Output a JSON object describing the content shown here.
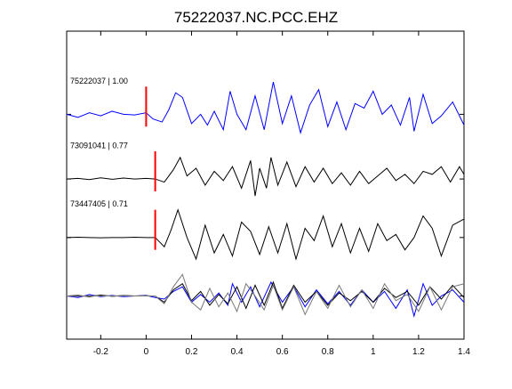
{
  "chart_data": {
    "type": "line",
    "title": "75222037.NC.PCC.EHZ",
    "xlabel": "",
    "ylabel": "",
    "xlim": [
      -0.35,
      1.4
    ],
    "ylim": [
      0,
      10
    ],
    "grid": false,
    "x_ticks": [
      -0.2,
      0,
      0.2,
      0.4,
      0.6,
      0.8,
      1,
      1.2,
      1.4
    ],
    "x_tick_labels": [
      "-0.2",
      "0",
      "0.2",
      "0.4",
      "0.6",
      "0.8",
      "1",
      "1.2",
      "1.4"
    ],
    "pick_marker_color": "#ff0000",
    "colors": {
      "master": "#0000ff",
      "correlated": "#000000",
      "overlay_gray": "#777777"
    },
    "traces": [
      {
        "label": "75222037 | 1.00",
        "pick_time": 0.0,
        "baseline": 7.3,
        "color": "#0000ff",
        "points": [
          [
            -0.35,
            7.3
          ],
          [
            -0.3,
            7.2
          ],
          [
            -0.25,
            7.35
          ],
          [
            -0.2,
            7.25
          ],
          [
            -0.15,
            7.4
          ],
          [
            -0.1,
            7.3
          ],
          [
            -0.05,
            7.28
          ],
          [
            0,
            7.35
          ],
          [
            0.03,
            7.15
          ],
          [
            0.07,
            7.05
          ],
          [
            0.1,
            7.45
          ],
          [
            0.13,
            8.0
          ],
          [
            0.16,
            7.85
          ],
          [
            0.2,
            7.0
          ],
          [
            0.24,
            7.3
          ],
          [
            0.27,
            6.95
          ],
          [
            0.3,
            7.4
          ],
          [
            0.34,
            6.8
          ],
          [
            0.37,
            8.05
          ],
          [
            0.4,
            7.3
          ],
          [
            0.44,
            6.8
          ],
          [
            0.48,
            7.9
          ],
          [
            0.52,
            6.8
          ],
          [
            0.56,
            8.35
          ],
          [
            0.6,
            7.0
          ],
          [
            0.64,
            7.9
          ],
          [
            0.68,
            6.7
          ],
          [
            0.72,
            7.6
          ],
          [
            0.76,
            8.1
          ],
          [
            0.8,
            6.9
          ],
          [
            0.84,
            7.7
          ],
          [
            0.88,
            6.8
          ],
          [
            0.92,
            7.65
          ],
          [
            0.96,
            7.5
          ],
          [
            1.0,
            8.05
          ],
          [
            1.04,
            7.3
          ],
          [
            1.08,
            7.6
          ],
          [
            1.12,
            6.95
          ],
          [
            1.16,
            7.85
          ],
          [
            1.18,
            6.75
          ],
          [
            1.22,
            7.95
          ],
          [
            1.26,
            7.0
          ],
          [
            1.3,
            7.25
          ],
          [
            1.35,
            7.7
          ],
          [
            1.4,
            6.95
          ]
        ]
      },
      {
        "label": "73091041 | 0.77",
        "pick_time": 0.04,
        "baseline": 5.2,
        "color": "#000000",
        "points": [
          [
            -0.35,
            5.2
          ],
          [
            -0.3,
            5.22
          ],
          [
            -0.25,
            5.18
          ],
          [
            -0.2,
            5.24
          ],
          [
            -0.15,
            5.19
          ],
          [
            -0.1,
            5.23
          ],
          [
            -0.05,
            5.2
          ],
          [
            0,
            5.22
          ],
          [
            0.04,
            5.2
          ],
          [
            0.08,
            5.1
          ],
          [
            0.12,
            5.5
          ],
          [
            0.15,
            5.9
          ],
          [
            0.18,
            5.3
          ],
          [
            0.22,
            5.55
          ],
          [
            0.26,
            5.0
          ],
          [
            0.3,
            5.45
          ],
          [
            0.34,
            5.15
          ],
          [
            0.38,
            5.6
          ],
          [
            0.42,
            4.9
          ],
          [
            0.46,
            5.8
          ],
          [
            0.48,
            4.65
          ],
          [
            0.5,
            5.55
          ],
          [
            0.53,
            4.9
          ],
          [
            0.55,
            5.9
          ],
          [
            0.58,
            5.0
          ],
          [
            0.62,
            5.75
          ],
          [
            0.66,
            4.95
          ],
          [
            0.7,
            5.6
          ],
          [
            0.74,
            5.1
          ],
          [
            0.78,
            5.55
          ],
          [
            0.82,
            5.05
          ],
          [
            0.86,
            5.4
          ],
          [
            0.9,
            5.0
          ],
          [
            0.94,
            5.45
          ],
          [
            0.98,
            5.05
          ],
          [
            1.02,
            5.3
          ],
          [
            1.06,
            5.55
          ],
          [
            1.1,
            5.15
          ],
          [
            1.14,
            5.35
          ],
          [
            1.18,
            5.05
          ],
          [
            1.22,
            5.45
          ],
          [
            1.26,
            5.35
          ],
          [
            1.3,
            5.6
          ],
          [
            1.34,
            5.1
          ],
          [
            1.38,
            5.6
          ],
          [
            1.4,
            5.35
          ]
        ]
      },
      {
        "label": "73447405 | 0.71",
        "pick_time": 0.04,
        "baseline": 3.3,
        "color": "#000000",
        "points": [
          [
            -0.35,
            3.3
          ],
          [
            -0.3,
            3.31
          ],
          [
            -0.25,
            3.3
          ],
          [
            -0.2,
            3.29
          ],
          [
            -0.15,
            3.3
          ],
          [
            -0.1,
            3.3
          ],
          [
            -0.05,
            3.31
          ],
          [
            0,
            3.3
          ],
          [
            0.04,
            3.3
          ],
          [
            0.08,
            3.0
          ],
          [
            0.11,
            3.55
          ],
          [
            0.14,
            4.2
          ],
          [
            0.18,
            3.3
          ],
          [
            0.22,
            2.6
          ],
          [
            0.26,
            3.7
          ],
          [
            0.3,
            2.8
          ],
          [
            0.34,
            3.4
          ],
          [
            0.38,
            2.7
          ],
          [
            0.42,
            3.8
          ],
          [
            0.46,
            3.5
          ],
          [
            0.5,
            2.75
          ],
          [
            0.54,
            3.65
          ],
          [
            0.58,
            2.8
          ],
          [
            0.62,
            3.75
          ],
          [
            0.66,
            2.6
          ],
          [
            0.7,
            3.6
          ],
          [
            0.74,
            3.2
          ],
          [
            0.78,
            4.0
          ],
          [
            0.82,
            3.0
          ],
          [
            0.86,
            3.75
          ],
          [
            0.9,
            2.8
          ],
          [
            0.94,
            3.6
          ],
          [
            0.98,
            2.85
          ],
          [
            1.02,
            3.75
          ],
          [
            1.06,
            3.2
          ],
          [
            1.1,
            3.4
          ],
          [
            1.14,
            2.9
          ],
          [
            1.18,
            3.3
          ],
          [
            1.22,
            4.0
          ],
          [
            1.26,
            3.6
          ],
          [
            1.3,
            2.7
          ],
          [
            1.35,
            3.7
          ],
          [
            1.4,
            3.9
          ]
        ]
      }
    ],
    "overlay": {
      "baseline": 1.4,
      "series": [
        {
          "color": "#0000ff",
          "points": [
            [
              -0.35,
              1.4
            ],
            [
              -0.3,
              1.35
            ],
            [
              -0.25,
              1.45
            ],
            [
              -0.2,
              1.38
            ],
            [
              -0.15,
              1.42
            ],
            [
              -0.1,
              1.38
            ],
            [
              -0.05,
              1.4
            ],
            [
              0,
              1.42
            ],
            [
              0.04,
              1.35
            ],
            [
              0.08,
              1.3
            ],
            [
              0.12,
              1.55
            ],
            [
              0.16,
              1.7
            ],
            [
              0.2,
              1.2
            ],
            [
              0.24,
              1.45
            ],
            [
              0.28,
              1.2
            ],
            [
              0.32,
              1.5
            ],
            [
              0.36,
              1.1
            ],
            [
              0.38,
              1.8
            ],
            [
              0.42,
              1.2
            ],
            [
              0.46,
              1.7
            ],
            [
              0.5,
              1.05
            ],
            [
              0.55,
              1.85
            ],
            [
              0.6,
              1.2
            ],
            [
              0.65,
              1.7
            ],
            [
              0.7,
              1.05
            ],
            [
              0.75,
              1.6
            ],
            [
              0.8,
              1.15
            ],
            [
              0.85,
              1.55
            ],
            [
              0.9,
              1.1
            ],
            [
              0.95,
              1.6
            ],
            [
              1.0,
              1.2
            ],
            [
              1.05,
              1.55
            ],
            [
              1.1,
              1.0
            ],
            [
              1.15,
              1.6
            ],
            [
              1.18,
              0.75
            ],
            [
              1.22,
              1.8
            ],
            [
              1.26,
              1.1
            ],
            [
              1.3,
              1.4
            ],
            [
              1.35,
              1.6
            ],
            [
              1.4,
              1.2
            ]
          ]
        },
        {
          "color": "#000000",
          "points": [
            [
              -0.35,
              1.4
            ],
            [
              -0.3,
              1.42
            ],
            [
              -0.25,
              1.38
            ],
            [
              -0.2,
              1.43
            ],
            [
              -0.15,
              1.39
            ],
            [
              -0.1,
              1.42
            ],
            [
              -0.05,
              1.4
            ],
            [
              0,
              1.41
            ],
            [
              0.04,
              1.4
            ],
            [
              0.08,
              1.2
            ],
            [
              0.12,
              1.6
            ],
            [
              0.16,
              1.8
            ],
            [
              0.2,
              1.25
            ],
            [
              0.24,
              1.55
            ],
            [
              0.28,
              1.1
            ],
            [
              0.32,
              1.45
            ],
            [
              0.36,
              1.15
            ],
            [
              0.4,
              1.7
            ],
            [
              0.44,
              1.0
            ],
            [
              0.48,
              1.75
            ],
            [
              0.52,
              1.1
            ],
            [
              0.56,
              1.85
            ],
            [
              0.6,
              1.0
            ],
            [
              0.65,
              1.75
            ],
            [
              0.7,
              1.2
            ],
            [
              0.75,
              1.55
            ],
            [
              0.8,
              1.1
            ],
            [
              0.85,
              1.5
            ],
            [
              0.9,
              1.25
            ],
            [
              0.95,
              1.55
            ],
            [
              1.0,
              1.2
            ],
            [
              1.05,
              1.65
            ],
            [
              1.1,
              1.35
            ],
            [
              1.15,
              1.55
            ],
            [
              1.2,
              1.1
            ],
            [
              1.25,
              1.7
            ],
            [
              1.3,
              1.3
            ],
            [
              1.35,
              1.75
            ],
            [
              1.4,
              1.35
            ]
          ]
        },
        {
          "color": "#777777",
          "points": [
            [
              -0.35,
              1.4
            ],
            [
              -0.3,
              1.39
            ],
            [
              -0.25,
              1.41
            ],
            [
              -0.2,
              1.4
            ],
            [
              -0.15,
              1.4
            ],
            [
              -0.1,
              1.41
            ],
            [
              -0.05,
              1.4
            ],
            [
              0,
              1.4
            ],
            [
              0.04,
              1.4
            ],
            [
              0.08,
              1.15
            ],
            [
              0.12,
              1.7
            ],
            [
              0.16,
              2.1
            ],
            [
              0.2,
              1.2
            ],
            [
              0.24,
              0.95
            ],
            [
              0.28,
              1.65
            ],
            [
              0.32,
              1.05
            ],
            [
              0.36,
              1.5
            ],
            [
              0.4,
              0.9
            ],
            [
              0.44,
              1.8
            ],
            [
              0.48,
              1.4
            ],
            [
              0.52,
              0.95
            ],
            [
              0.56,
              1.75
            ],
            [
              0.6,
              0.95
            ],
            [
              0.65,
              1.7
            ],
            [
              0.7,
              0.8
            ],
            [
              0.75,
              1.55
            ],
            [
              0.8,
              1.0
            ],
            [
              0.85,
              1.75
            ],
            [
              0.9,
              1.05
            ],
            [
              0.95,
              1.6
            ],
            [
              1.0,
              1.0
            ],
            [
              1.05,
              1.8
            ],
            [
              1.1,
              1.25
            ],
            [
              1.15,
              1.45
            ],
            [
              1.2,
              0.9
            ],
            [
              1.25,
              1.7
            ],
            [
              1.3,
              0.95
            ],
            [
              1.35,
              1.7
            ],
            [
              1.4,
              1.8
            ]
          ]
        }
      ]
    }
  }
}
